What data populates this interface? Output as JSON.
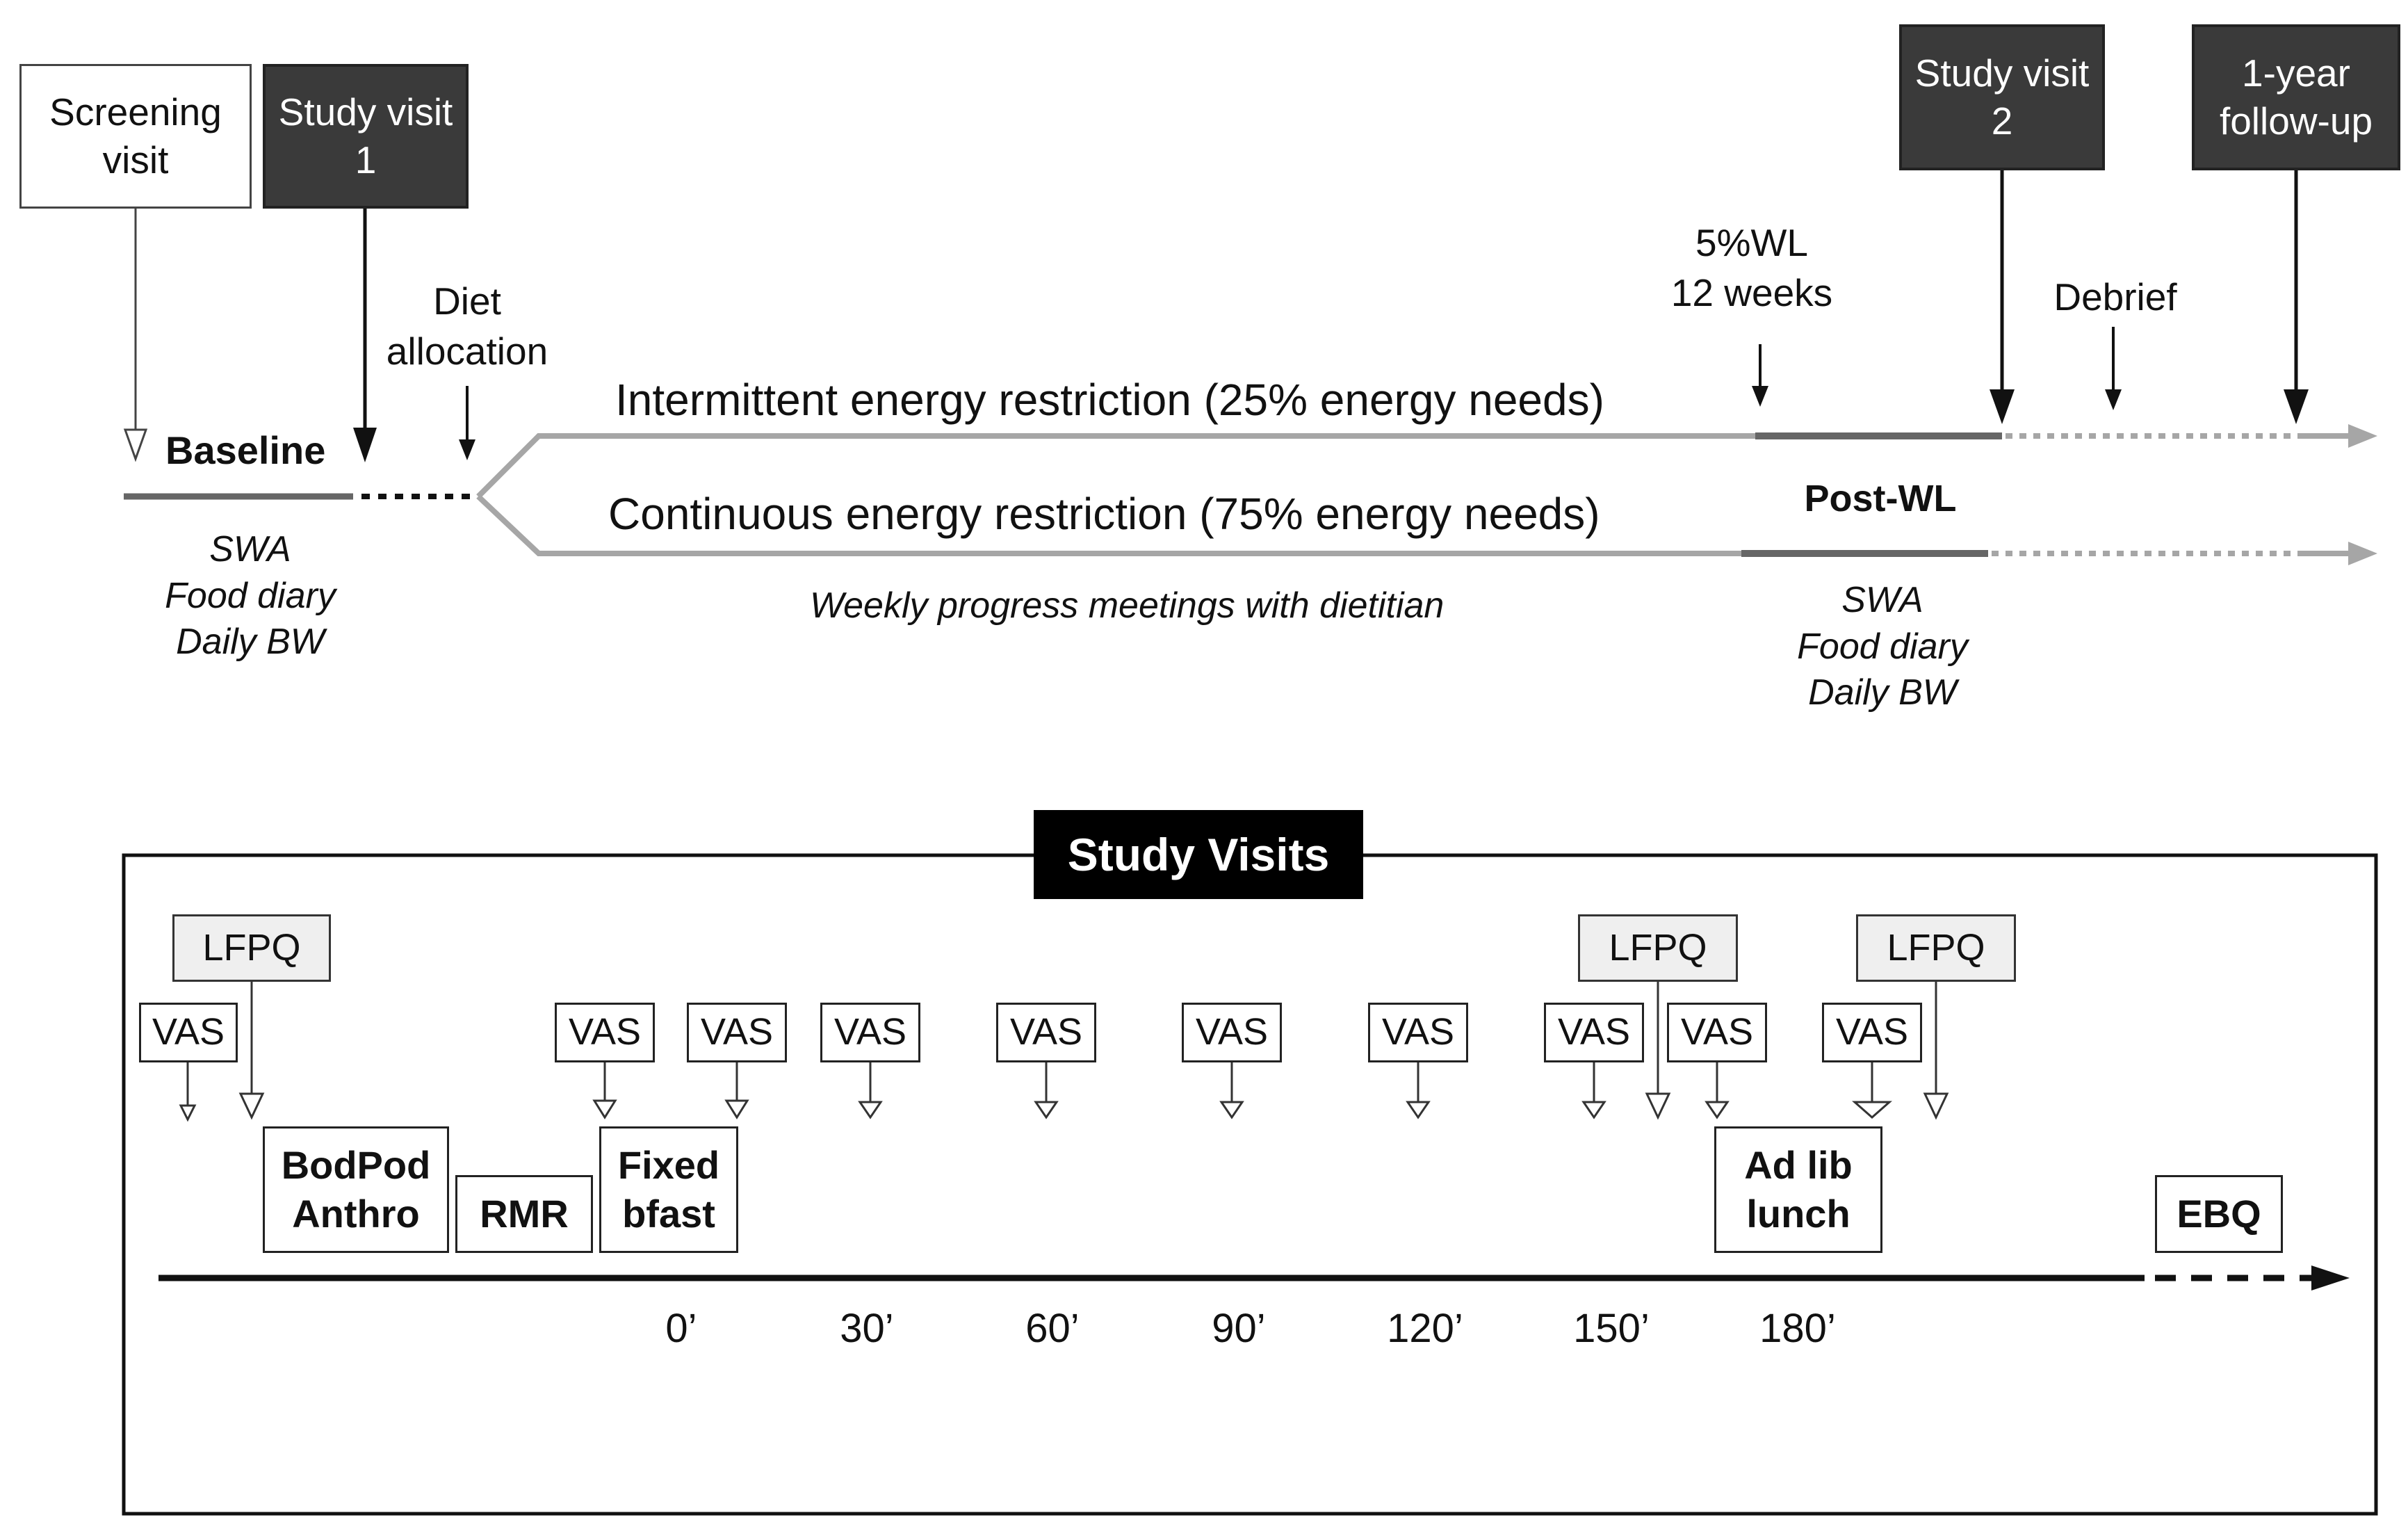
{
  "timeline": {
    "screening": [
      "Screening",
      "visit"
    ],
    "visit1": [
      "Study visit",
      "1"
    ],
    "visit2": [
      "Study visit",
      "2"
    ],
    "followup": [
      "1-year",
      "follow-up"
    ],
    "diet_allocation": [
      "Diet",
      "allocation"
    ],
    "wl_marker": [
      "5%WL",
      "12 weeks"
    ],
    "debrief": "Debrief",
    "baseline": "Baseline",
    "post_wl": "Post-WL",
    "ier": "Intermittent energy restriction (25% energy needs)",
    "cer": "Continuous energy restriction (75% energy needs)",
    "weekly": "Weekly progress meetings with dietitian",
    "baseline_measures": [
      "SWA",
      "Food diary",
      "Daily BW"
    ],
    "post_measures": [
      "SWA",
      "Food diary",
      "Daily BW"
    ]
  },
  "study_visits": {
    "title": "Study Visits",
    "lfpq": "LFPQ",
    "vas": "VAS",
    "bodpod": [
      "BodPod",
      "Anthro"
    ],
    "rmr": "RMR",
    "fixed_bfast": [
      "Fixed",
      "bfast"
    ],
    "adlib": [
      "Ad lib",
      "lunch"
    ],
    "ebq": "EBQ",
    "time_ticks": [
      "0’",
      "30’",
      "60’",
      "90’",
      "120’",
      "150’",
      "180’"
    ]
  },
  "colors": {
    "dark_box": "#3a3a3a",
    "line_grey": "#a6a6a6",
    "line_dark": "#666666",
    "title_black": "#000000"
  }
}
